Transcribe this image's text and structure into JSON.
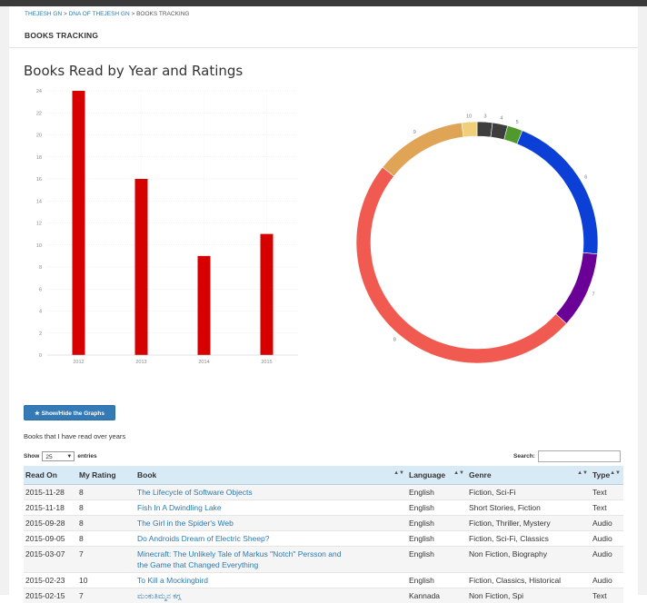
{
  "breadcrumb": {
    "items": [
      "THEJESH GN",
      "DNA OF THEJESH GN",
      "BOOKS TRACKING"
    ],
    "separator": ">"
  },
  "section_title": "BOOKS TRACKING",
  "chart_heading": "Books Read by Year and Ratings",
  "chart_data": [
    {
      "type": "bar",
      "categories": [
        "2012",
        "2013",
        "2014",
        "2015"
      ],
      "values": [
        24,
        16,
        9,
        11
      ],
      "ylim": [
        0,
        24
      ],
      "yticks": [
        0,
        2,
        4,
        6,
        8,
        10,
        12,
        14,
        16,
        18,
        20,
        22,
        24
      ],
      "color": "#d70000",
      "grid": true
    },
    {
      "type": "pie",
      "donut": true,
      "slices": [
        {
          "label": "3",
          "value": 1,
          "color": "#3d3d3d"
        },
        {
          "label": "4",
          "value": 1,
          "color": "#3d3d3d"
        },
        {
          "label": "5",
          "value": 1,
          "color": "#4f9a2b"
        },
        {
          "label": "6",
          "value": 10,
          "color": "#0b3fd6"
        },
        {
          "label": "7",
          "value": 5,
          "color": "#6a0096"
        },
        {
          "label": "8",
          "value": 24,
          "color": "#f05a50"
        },
        {
          "label": "9",
          "value": 6,
          "color": "#dfa455"
        },
        {
          "label": "10",
          "value": 1,
          "color": "#efcf79"
        }
      ]
    }
  ],
  "toggle_button_label": "★ Show/Hide the Graphs",
  "description": "Books that I have read over years",
  "length_control": {
    "prefix": "Show",
    "value": "25",
    "suffix": "entries"
  },
  "search": {
    "label": "Search:",
    "value": ""
  },
  "table": {
    "columns": [
      "Read On",
      "My Rating",
      "Book",
      "Language",
      "Genre",
      "Type"
    ],
    "rows": [
      {
        "read_on": "2015-11-28",
        "rating": "8",
        "book": "The Lifecycle of Software Objects",
        "book2": "",
        "language": "English",
        "genre": "Fiction, Sci-Fi",
        "type": "Text"
      },
      {
        "read_on": "2015-11-18",
        "rating": "8",
        "book": "Fish In A Dwindling Lake",
        "book2": "",
        "language": "English",
        "genre": "Short Stories, Fiction",
        "type": "Text"
      },
      {
        "read_on": "2015-09-28",
        "rating": "8",
        "book": "The Girl in the Spider's Web",
        "book2": "",
        "language": "English",
        "genre": "Fiction, Thriller, Mystery",
        "type": "Audio"
      },
      {
        "read_on": "2015-09-05",
        "rating": "8",
        "book": "Do Androids Dream of Electric Sheep?",
        "book2": "",
        "language": "English",
        "genre": "Fiction, Sci-Fi, Classics",
        "type": "Audio"
      },
      {
        "read_on": "2015-03-07",
        "rating": "7",
        "book": "Minecraft: The Unlikely Tale of Markus \"Notch\" Persson and",
        "book2": "the Game that Changed Everything",
        "language": "English",
        "genre": "Non Fiction, Biography",
        "type": "Audio"
      },
      {
        "read_on": "2015-02-23",
        "rating": "10",
        "book": "To Kill a Mockingbird",
        "book2": "",
        "language": "English",
        "genre": "Fiction, Classics, Historical",
        "type": "Audio"
      },
      {
        "read_on": "2015-02-15",
        "rating": "7",
        "book": "ಮಂಕುತಿಮ್ಮನ ಕಗ್ಗ",
        "book2": "",
        "language": "Kannada",
        "genre": "Non Fiction, Spi",
        "type": "Text"
      }
    ]
  }
}
